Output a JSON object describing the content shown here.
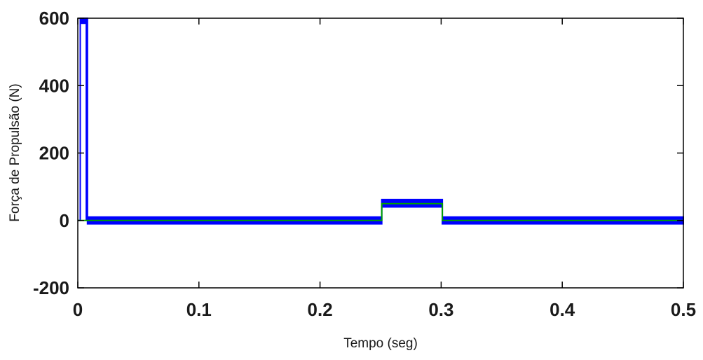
{
  "chart_data": {
    "type": "line",
    "title": "",
    "xlabel": "Tempo (seg)",
    "ylabel": "Força de Propulsão (N)",
    "xlim": [
      0,
      0.5
    ],
    "ylim": [
      -200,
      600
    ],
    "xticks": [
      0,
      0.1,
      0.2,
      0.3,
      0.4,
      0.5
    ],
    "xtick_labels": [
      "0",
      "0.1",
      "0.2",
      "0.3",
      "0.4",
      "0.5"
    ],
    "yticks": [
      -200,
      0,
      200,
      400,
      600
    ],
    "ytick_labels": [
      "-200",
      "0",
      "200",
      "400",
      "600"
    ],
    "grid": false,
    "legend": "none",
    "series": [
      {
        "color": "#0000ff",
        "style": "band",
        "x": [
          0,
          0.002,
          0.002,
          0.007,
          0.007,
          0.008,
          0.008,
          0.25,
          0.25,
          0.251,
          0.251,
          0.3,
          0.3,
          0.301,
          0.301,
          0.5
        ],
        "y_upper": [
          0,
          0,
          600,
          600,
          600,
          600,
          10,
          10,
          10,
          10,
          62,
          62,
          62,
          62,
          10,
          10
        ],
        "y_lower": [
          0,
          0,
          585,
          585,
          0,
          0,
          -10,
          -10,
          -10,
          -10,
          40,
          40,
          40,
          40,
          -10,
          -10
        ]
      },
      {
        "color": "#00a000",
        "style": "line",
        "x": [
          0,
          0.25,
          0.25,
          0.251,
          0.251,
          0.3,
          0.3,
          0.301,
          0.301,
          0.5
        ],
        "y": [
          0,
          0,
          0,
          0,
          50,
          50,
          50,
          50,
          0,
          0
        ]
      }
    ]
  }
}
